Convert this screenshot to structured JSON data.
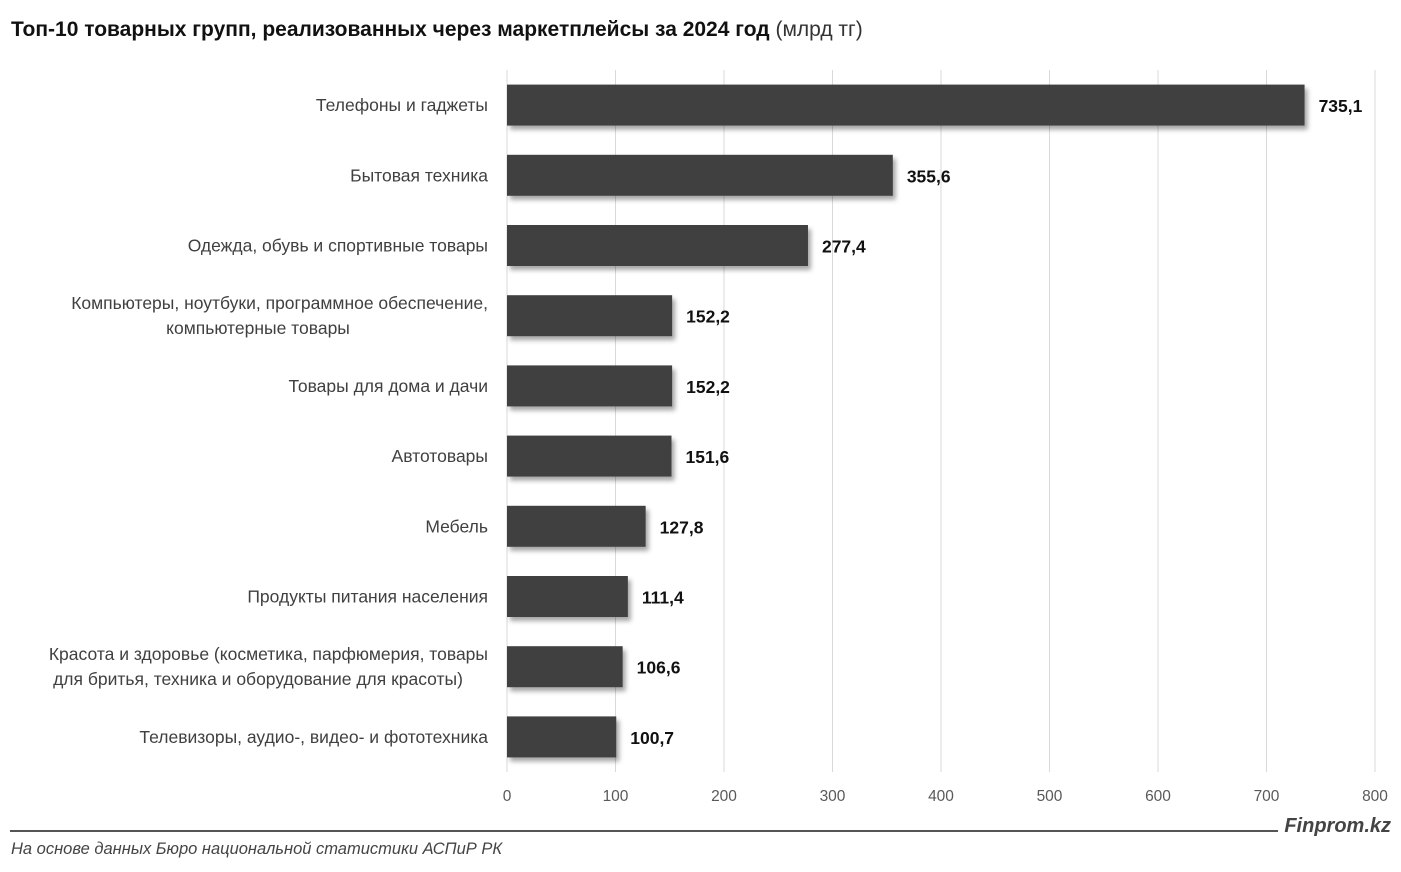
{
  "chart_data": {
    "type": "bar",
    "orientation": "horizontal",
    "title": "Топ-10 товарных групп, реализованных через маркетплейсы за 2024 год",
    "title_unit": "(млрд тг)",
    "categories": [
      [
        "Телефоны и гаджеты"
      ],
      [
        "Бытовая техника"
      ],
      [
        "Одежда, обувь и спортивные товары"
      ],
      [
        "Компьютеры, ноутбуки, программное обеспечение,",
        "компьютерные товары"
      ],
      [
        "Товары для дома и дачи"
      ],
      [
        "Автотовары"
      ],
      [
        "Мебель"
      ],
      [
        "Продукты питания населения"
      ],
      [
        "Красота и здоровье (косметика, парфюмерия, товары",
        "для бритья, техника и оборудование для красоты)"
      ],
      [
        "Телевизоры, аудио-, видео- и фототехника"
      ]
    ],
    "values": [
      735.1,
      355.6,
      277.4,
      152.2,
      152.2,
      151.6,
      127.8,
      111.4,
      106.6,
      100.7
    ],
    "value_labels": [
      "735,1",
      "355,6",
      "277,4",
      "152,2",
      "152,2",
      "151,6",
      "127,8",
      "111,4",
      "106,6",
      "100,7"
    ],
    "xlim": [
      0,
      800
    ],
    "xticks": [
      0,
      100,
      200,
      300,
      400,
      500,
      600,
      700,
      800
    ],
    "xtick_labels": [
      "0",
      "100",
      "200",
      "300",
      "400",
      "500",
      "600",
      "700",
      "800"
    ],
    "grid": true,
    "bar_color": "#404040",
    "grid_color": "#d9d9d9"
  },
  "footer": {
    "brand": "Finprom.kz",
    "source": "На основе данных Бюро национальной статистики АСПиР РК"
  }
}
